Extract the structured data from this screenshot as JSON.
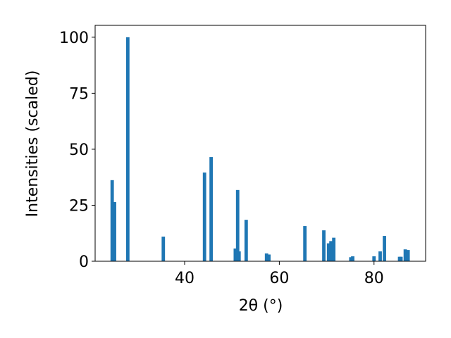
{
  "chart_data": {
    "type": "bar",
    "x": [
      24.7,
      25.2,
      28.0,
      35.5,
      44.2,
      45.6,
      50.7,
      51.2,
      51.5,
      53.0,
      57.3,
      57.8,
      65.4,
      69.4,
      70.4,
      70.9,
      71.5,
      75.1,
      75.5,
      80.0,
      81.3,
      82.2,
      85.4,
      85.7,
      86.6,
      87.2
    ],
    "values": [
      36.2,
      26.4,
      100,
      11.0,
      39.6,
      46.5,
      5.7,
      31.8,
      4.4,
      18.5,
      3.5,
      3.0,
      15.7,
      13.8,
      8.0,
      9.0,
      10.5,
      1.8,
      2.2,
      2.2,
      4.4,
      11.3,
      2.0,
      2.0,
      5.3,
      5.0
    ],
    "color": "#1f77b4",
    "xlabel": "2θ (°)",
    "ylabel": "Intensities (scaled)",
    "xlim": [
      21.1,
      90.9
    ],
    "ylim": [
      0,
      105.3
    ],
    "xticks": [
      40,
      60,
      80
    ],
    "yticks": [
      0,
      25,
      50,
      75,
      100
    ]
  }
}
